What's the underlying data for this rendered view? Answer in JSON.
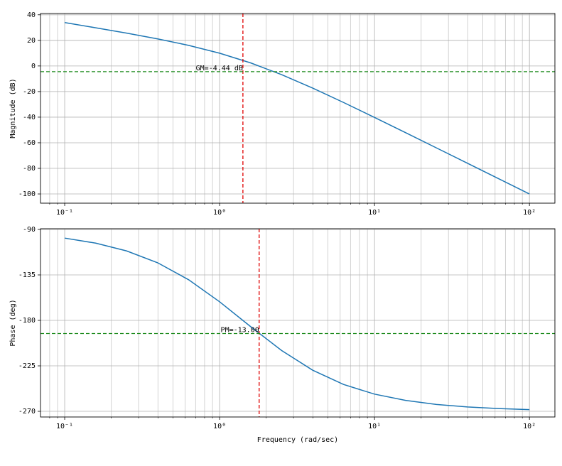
{
  "chart_data": [
    {
      "type": "line",
      "ylabel": "Magnitude (dB)",
      "xscale": "log",
      "grid": true,
      "x": [
        0.1,
        0.1585,
        0.2512,
        0.3981,
        0.631,
        1,
        1.585,
        2.512,
        3.981,
        6.31,
        10,
        15.85,
        25.12,
        39.81,
        63.1,
        100
      ],
      "series": [
        {
          "color": "#1f77b4",
          "values": [
            33.93,
            29.84,
            25.65,
            21.17,
            16.11,
            10.0,
            2.41,
            -6.77,
            -17.24,
            -28.52,
            -40.21,
            -52.09,
            -64.04,
            -76.01,
            -88.01,
            -100.0
          ]
        }
      ],
      "xlim": [
        0.0698,
        146
      ],
      "ylim": [
        -107.2,
        41
      ],
      "xticks": [
        {
          "value": 0.1,
          "label": "10⁻¹"
        },
        {
          "value": 1,
          "label": "10⁰"
        },
        {
          "value": 10,
          "label": "10¹"
        },
        {
          "value": 100,
          "label": "10²"
        }
      ],
      "xminorticks": [
        0.08,
        0.09,
        0.2,
        0.3,
        0.4,
        0.5,
        0.6,
        0.7,
        0.8,
        0.9,
        2,
        3,
        4,
        5,
        6,
        7,
        8,
        9,
        20,
        30,
        40,
        50,
        60,
        70,
        80,
        90
      ],
      "yticks": [
        40,
        20,
        0,
        -20,
        -40,
        -60,
        -80,
        -100
      ],
      "vline": {
        "value": 1.414,
        "color": "#e00000"
      },
      "hline": {
        "value": -4.44,
        "color": "#1a8a1a"
      },
      "annotation": "GM=-4.44 dB"
    },
    {
      "type": "line",
      "ylabel": "Phase (deg)",
      "xlabel": "Frequency (rad/sec)",
      "xscale": "log",
      "grid": true,
      "x": [
        0.1,
        0.1585,
        0.2512,
        0.3981,
        0.631,
        1,
        1.585,
        2.512,
        3.981,
        6.31,
        10,
        15.85,
        25.12,
        39.81,
        63.1,
        100
      ],
      "series": [
        {
          "color": "#1f77b4",
          "values": [
            -98.57,
            -103.54,
            -111.26,
            -122.97,
            -139.76,
            -161.57,
            -186.15,
            -209.76,
            -229.22,
            -243.42,
            -252.98,
            -259.2,
            -263.17,
            -265.68,
            -267.27,
            -268.28
          ]
        }
      ],
      "xlim": [
        0.0698,
        146
      ],
      "ylim": [
        -275.6,
        -89.3
      ],
      "xticks": [
        {
          "value": 0.1,
          "label": "10⁻¹"
        },
        {
          "value": 1,
          "label": "10⁰"
        },
        {
          "value": 10,
          "label": "10¹"
        },
        {
          "value": 100,
          "label": "10²"
        }
      ],
      "xminorticks": [
        0.08,
        0.09,
        0.2,
        0.3,
        0.4,
        0.5,
        0.6,
        0.7,
        0.8,
        0.9,
        2,
        3,
        4,
        5,
        6,
        7,
        8,
        9,
        20,
        30,
        40,
        50,
        60,
        70,
        80,
        90
      ],
      "yticks": [
        -90,
        -135,
        -180,
        -225,
        -270
      ],
      "vline": {
        "value": 1.8,
        "color": "#e00000"
      },
      "hline": {
        "value": -193,
        "color": "#1a8a1a"
      },
      "annotation": "PM=-13.00"
    }
  ]
}
